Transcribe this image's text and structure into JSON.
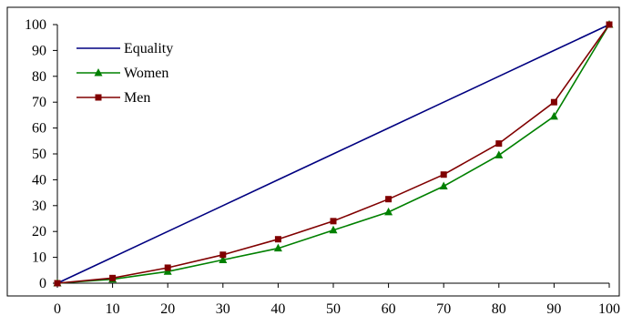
{
  "chart_data": {
    "type": "line",
    "x": [
      0,
      10,
      20,
      30,
      40,
      50,
      60,
      70,
      80,
      90,
      100
    ],
    "xlim": [
      0,
      100
    ],
    "ylim": [
      0,
      100
    ],
    "x_ticks": [
      "0",
      "10",
      "20",
      "30",
      "40",
      "50",
      "60",
      "70",
      "80",
      "90",
      "100"
    ],
    "y_ticks": [
      "0",
      "10",
      "20",
      "30",
      "40",
      "50",
      "60",
      "70",
      "80",
      "90",
      "100"
    ],
    "grid": false,
    "legend_position": "top-left",
    "series": [
      {
        "name": "Equality",
        "color": "#000080",
        "marker": "none",
        "values": [
          0,
          10,
          20,
          30,
          40,
          50,
          60,
          70,
          80,
          90,
          100
        ]
      },
      {
        "name": "Women",
        "color": "#008000",
        "marker": "triangle",
        "values": [
          0,
          1.5,
          4.5,
          9,
          13.5,
          20.5,
          27.5,
          37.5,
          49.5,
          64.5,
          100
        ]
      },
      {
        "name": "Men",
        "color": "#800000",
        "marker": "square",
        "values": [
          0,
          2,
          6,
          11,
          17,
          24,
          32.5,
          42,
          54,
          70,
          100
        ]
      }
    ]
  }
}
